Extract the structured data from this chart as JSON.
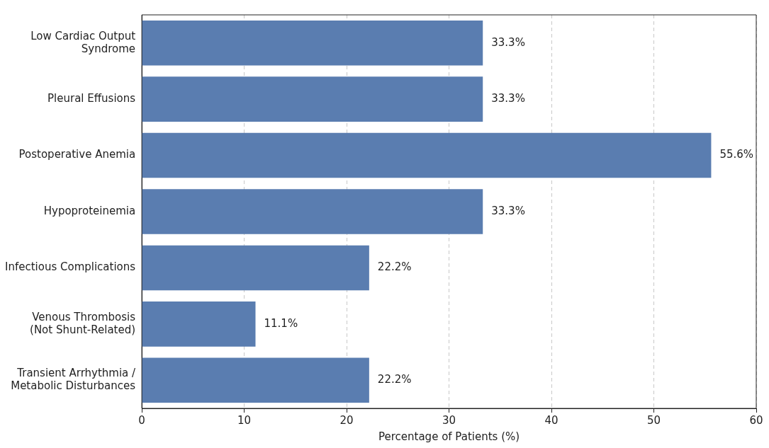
{
  "chart_data": {
    "type": "bar",
    "orientation": "horizontal",
    "xlabel": "Percentage of Patients (%)",
    "categories": [
      "Low Cardiac Output\nSyndrome",
      "Pleural Effusions",
      "Postoperative Anemia",
      "Hypoproteinemia",
      "Infectious Complications",
      "Venous Thrombosis\n(Not Shunt-Related)",
      "Transient Arrhythmia /\nMetabolic Disturbances"
    ],
    "values": [
      33.3,
      33.3,
      55.6,
      33.3,
      22.2,
      11.1,
      22.2
    ],
    "value_labels": [
      "33.3%",
      "33.3%",
      "55.6%",
      "33.3%",
      "22.2%",
      "11.1%",
      "22.2%"
    ],
    "color": "#5a7db0",
    "xlim": [
      0,
      60
    ],
    "xticks": [
      0,
      10,
      20,
      30,
      40,
      50,
      60
    ],
    "grid": "x",
    "legend": false
  }
}
